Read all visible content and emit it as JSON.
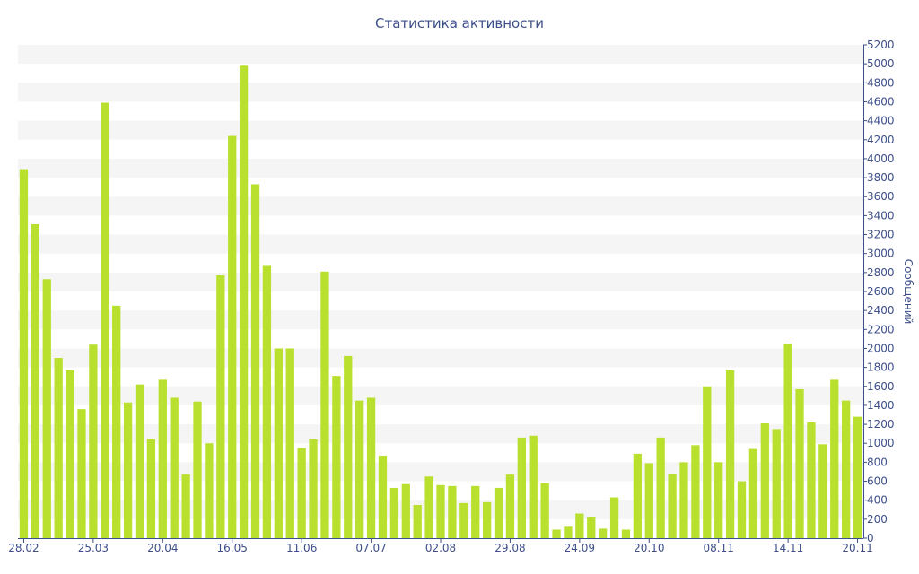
{
  "chart_data": {
    "type": "bar",
    "title": "Статистика активности",
    "xlabel": "",
    "ylabel": "Сообщений",
    "y_axis_side": "right",
    "ylim": [
      0,
      5200
    ],
    "y_ticks": [
      0,
      200,
      400,
      600,
      800,
      1000,
      1200,
      1400,
      1600,
      1800,
      2000,
      2200,
      2400,
      2600,
      2800,
      3000,
      3200,
      3400,
      3600,
      3800,
      4000,
      4200,
      4400,
      4600,
      4800,
      5000,
      5200
    ],
    "x_tick_labels": [
      {
        "index": 0,
        "label": "28.02"
      },
      {
        "index": 6,
        "label": "25.03"
      },
      {
        "index": 12,
        "label": "20.04"
      },
      {
        "index": 18,
        "label": "16.05"
      },
      {
        "index": 24,
        "label": "11.06"
      },
      {
        "index": 30,
        "label": "07.07"
      },
      {
        "index": 36,
        "label": "02.08"
      },
      {
        "index": 42,
        "label": "29.08"
      },
      {
        "index": 48,
        "label": "24.09"
      },
      {
        "index": 54,
        "label": "20.10"
      },
      {
        "index": 60,
        "label": "08.11"
      },
      {
        "index": 66,
        "label": "14.11"
      },
      {
        "index": 72,
        "label": "20.11"
      }
    ],
    "values": [
      3890,
      3310,
      2730,
      1900,
      1770,
      1360,
      2040,
      4590,
      2450,
      1430,
      1620,
      1040,
      1670,
      1480,
      670,
      1440,
      1000,
      2770,
      4240,
      4980,
      3730,
      2870,
      2000,
      2000,
      950,
      1040,
      2810,
      1710,
      1920,
      1450,
      1480,
      870,
      530,
      570,
      350,
      650,
      560,
      550,
      370,
      550,
      380,
      530,
      670,
      1060,
      1080,
      580,
      90,
      120,
      260,
      220,
      100,
      430,
      90,
      890,
      790,
      1060,
      680,
      800,
      980,
      1600,
      800,
      1770,
      600,
      940,
      1210,
      1150,
      2050,
      1570,
      1220,
      990,
      1670,
      1450,
      1280
    ],
    "colors": {
      "bar": "#b9e02e",
      "text": "#3d4f8a",
      "band": "#f5f5f5",
      "axis": "#3d4f8a"
    },
    "grid": "alternating horizontal bands",
    "legend": "none"
  }
}
